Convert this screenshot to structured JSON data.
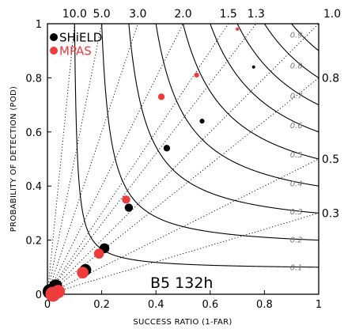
{
  "chart_data": {
    "type": "scatter",
    "title": "",
    "xlabel": "SUCCESS RATIO (1-FAR)",
    "ylabel": "PROBABILITY OF DETECTION (POD)",
    "xlim": [
      0,
      1
    ],
    "ylim": [
      0,
      1
    ],
    "x_ticks": [
      "0",
      "0.2",
      "0.4",
      "0.6",
      "0.8",
      "1"
    ],
    "y_ticks": [
      "0",
      "0.2",
      "0.4",
      "0.6",
      "0.8",
      "1"
    ],
    "legend_position": "top-left",
    "annotation": "B5 132h",
    "bias_lines": [
      {
        "value": 10.0,
        "label": "10.0"
      },
      {
        "value": 5.0,
        "label": "5.0"
      },
      {
        "value": 3.0,
        "label": "3.0"
      },
      {
        "value": 2.0,
        "label": "2.0"
      },
      {
        "value": 1.5,
        "label": "1.5"
      },
      {
        "value": 1.3,
        "label": "1.3"
      },
      {
        "value": 1.0,
        "label": "1.0"
      },
      {
        "value": 0.8,
        "label": "0.8"
      },
      {
        "value": 0.5,
        "label": "0.5"
      },
      {
        "value": 0.3,
        "label": "0.3"
      }
    ],
    "csi_contours": [
      {
        "value": 0.1,
        "label": "0.1"
      },
      {
        "value": 0.2,
        "label": "0.2"
      },
      {
        "value": 0.3,
        "label": "0.3"
      },
      {
        "value": 0.4,
        "label": "0.4"
      },
      {
        "value": 0.5,
        "label": "0.5"
      },
      {
        "value": 0.6,
        "label": "0.6"
      },
      {
        "value": 0.7,
        "label": "0.7"
      },
      {
        "value": 0.8,
        "label": "0.8"
      },
      {
        "value": 0.9,
        "label": "0.9"
      }
    ],
    "series": [
      {
        "name": "SHiELD",
        "color": "#000000",
        "points": [
          {
            "x": 0.76,
            "y": 0.84
          },
          {
            "x": 0.57,
            "y": 0.64
          },
          {
            "x": 0.44,
            "y": 0.54
          },
          {
            "x": 0.3,
            "y": 0.32
          },
          {
            "x": 0.21,
            "y": 0.17
          },
          {
            "x": 0.14,
            "y": 0.09
          },
          {
            "x": 0.03,
            "y": 0.03
          },
          {
            "x": 0.01,
            "y": 0.01
          }
        ]
      },
      {
        "name": "MPAS",
        "color": "#ee3b3b",
        "points": [
          {
            "x": 0.7,
            "y": 0.98
          },
          {
            "x": 0.55,
            "y": 0.81
          },
          {
            "x": 0.42,
            "y": 0.73
          },
          {
            "x": 0.29,
            "y": 0.35
          },
          {
            "x": 0.19,
            "y": 0.15
          },
          {
            "x": 0.13,
            "y": 0.08
          },
          {
            "x": 0.04,
            "y": 0.01
          },
          {
            "x": 0.02,
            "y": 0.0
          }
        ]
      }
    ]
  }
}
